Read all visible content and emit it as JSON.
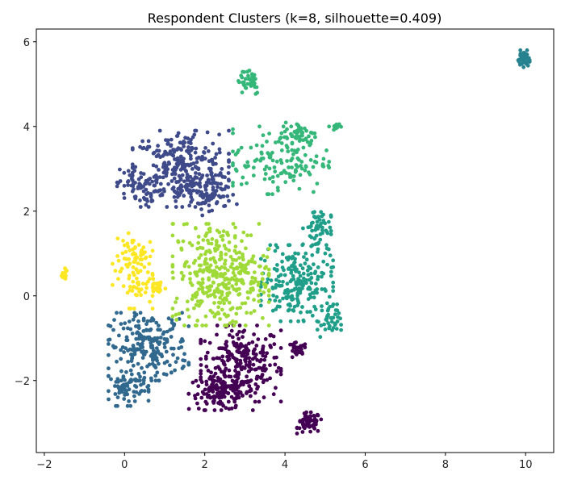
{
  "chart_data": {
    "type": "scatter",
    "title": "Respondent Clusters (k=8, silhouette=0.409)",
    "xlabel": "",
    "ylabel": "",
    "xlim": [
      -2.2,
      10.7
    ],
    "ylim": [
      -3.7,
      6.3
    ],
    "xticks": [
      -2,
      0,
      2,
      4,
      6,
      8,
      10
    ],
    "yticks": [
      -2,
      0,
      2,
      4,
      6
    ],
    "grid": false,
    "legend": "none",
    "clusters": [
      {
        "color": "#440154",
        "regions": [
          {
            "cx": 2.9,
            "cy": -1.6,
            "rx": 1.0,
            "ry": 0.9,
            "n": 260
          },
          {
            "cx": 2.4,
            "cy": -2.3,
            "rx": 0.8,
            "ry": 0.4,
            "n": 120
          },
          {
            "cx": 4.3,
            "cy": -1.3,
            "rx": 0.25,
            "ry": 0.2,
            "n": 25
          },
          {
            "cx": 4.6,
            "cy": -3.0,
            "rx": 0.3,
            "ry": 0.25,
            "n": 60
          }
        ]
      },
      {
        "color": "#3e4a89",
        "regions": [
          {
            "cx": 1.4,
            "cy": 3.0,
            "rx": 1.2,
            "ry": 0.9,
            "n": 300
          },
          {
            "cx": 0.3,
            "cy": 2.6,
            "rx": 0.5,
            "ry": 0.4,
            "n": 60
          },
          {
            "cx": 2.1,
            "cy": 2.4,
            "rx": 0.7,
            "ry": 0.5,
            "n": 80
          }
        ]
      },
      {
        "color": "#31688e",
        "regions": [
          {
            "cx": 0.6,
            "cy": -1.2,
            "rx": 1.0,
            "ry": 0.8,
            "n": 220
          },
          {
            "cx": 0.1,
            "cy": -2.2,
            "rx": 0.5,
            "ry": 0.4,
            "n": 70
          }
        ]
      },
      {
        "color": "#26828e",
        "regions": [
          {
            "cx": 9.95,
            "cy": 5.6,
            "rx": 0.15,
            "ry": 0.2,
            "n": 45
          }
        ]
      },
      {
        "color": "#1f9e89",
        "regions": [
          {
            "cx": 4.3,
            "cy": 0.3,
            "rx": 0.9,
            "ry": 0.9,
            "n": 210
          },
          {
            "cx": 4.8,
            "cy": 1.6,
            "rx": 0.35,
            "ry": 0.5,
            "n": 60
          },
          {
            "cx": 5.1,
            "cy": -0.6,
            "rx": 0.3,
            "ry": 0.4,
            "n": 40
          }
        ]
      },
      {
        "color": "#35b779",
        "regions": [
          {
            "cx": 3.9,
            "cy": 3.2,
            "rx": 1.2,
            "ry": 0.8,
            "n": 140
          },
          {
            "cx": 3.1,
            "cy": 5.1,
            "rx": 0.3,
            "ry": 0.35,
            "n": 40
          },
          {
            "cx": 4.4,
            "cy": 3.8,
            "rx": 0.4,
            "ry": 0.3,
            "n": 40
          },
          {
            "cx": 5.3,
            "cy": 4.0,
            "rx": 0.1,
            "ry": 0.08,
            "n": 15
          }
        ]
      },
      {
        "color": "#a0da39",
        "regions": [
          {
            "cx": 2.4,
            "cy": 0.5,
            "rx": 1.2,
            "ry": 1.2,
            "n": 360
          }
        ]
      },
      {
        "color": "#fde725",
        "regions": [
          {
            "cx": 0.2,
            "cy": 0.7,
            "rx": 0.5,
            "ry": 1.0,
            "n": 100
          },
          {
            "cx": 0.8,
            "cy": 0.2,
            "rx": 0.25,
            "ry": 0.2,
            "n": 25
          },
          {
            "cx": -1.5,
            "cy": 0.5,
            "rx": 0.08,
            "ry": 0.15,
            "n": 15
          }
        ]
      }
    ]
  }
}
